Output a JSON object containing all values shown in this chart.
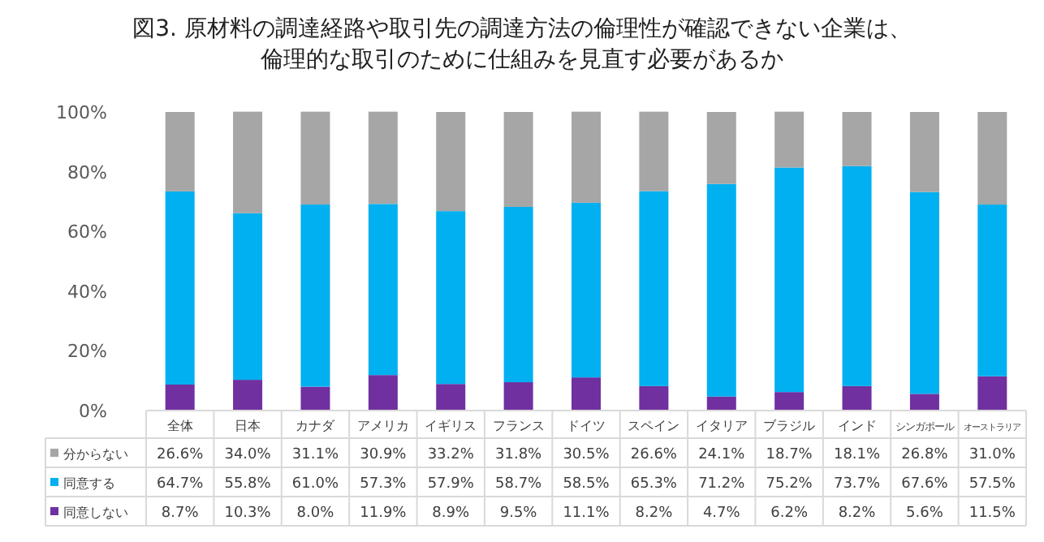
{
  "chart_data": {
    "type": "bar",
    "stacked": true,
    "title": "図3. 原材料の調達経路や取引先の調達方法の倫理性が確認できない企業は、倫理的な取引のために仕組みを見直す必要があるか",
    "categories": [
      "全体",
      "日本",
      "カナダ",
      "アメリカ",
      "イギリス",
      "フランス",
      "ドイツ",
      "スペイン",
      "イタリア",
      "ブラジル",
      "インド",
      "シンガポール",
      "オーストラリア"
    ],
    "series": [
      {
        "name": "同意しない",
        "color": "#7030a0",
        "values": [
          8.7,
          10.3,
          8.0,
          11.9,
          8.9,
          9.5,
          11.1,
          8.2,
          4.7,
          6.2,
          8.2,
          5.6,
          11.5
        ],
        "value_labels": [
          "8.7%",
          "10.3%",
          "8.0%",
          "11.9%",
          "8.9%",
          "9.5%",
          "11.1%",
          "8.2%",
          "4.7%",
          "6.2%",
          "8.2%",
          "5.6%",
          "11.5%"
        ]
      },
      {
        "name": "同意する",
        "color": "#00b0f0",
        "values": [
          64.7,
          55.8,
          61.0,
          57.3,
          57.9,
          58.7,
          58.5,
          65.3,
          71.2,
          75.2,
          73.7,
          67.6,
          57.5
        ],
        "value_labels": [
          "64.7%",
          "55.8%",
          "61.0%",
          "57.3%",
          "57.9%",
          "58.7%",
          "58.5%",
          "65.3%",
          "71.2%",
          "75.2%",
          "73.7%",
          "67.6%",
          "57.5%"
        ]
      },
      {
        "name": "分からない",
        "color": "#a6a6a6",
        "values": [
          26.6,
          34.0,
          31.1,
          30.9,
          33.2,
          31.8,
          30.5,
          26.6,
          24.1,
          18.7,
          18.1,
          26.8,
          31.0
        ],
        "value_labels": [
          "26.6%",
          "34.0%",
          "31.1%",
          "30.9%",
          "33.2%",
          "31.8%",
          "30.5%",
          "26.6%",
          "24.1%",
          "18.7%",
          "18.1%",
          "26.8%",
          "31.0%"
        ]
      }
    ],
    "ylim": [
      0,
      100
    ],
    "yticks": [
      {
        "value": 0,
        "label": "0%"
      },
      {
        "value": 20,
        "label": "20%"
      },
      {
        "value": 40,
        "label": "40%"
      },
      {
        "value": 60,
        "label": "60%"
      },
      {
        "value": 80,
        "label": "80%"
      },
      {
        "value": 100,
        "label": "100%"
      }
    ],
    "legend": "bottom"
  }
}
